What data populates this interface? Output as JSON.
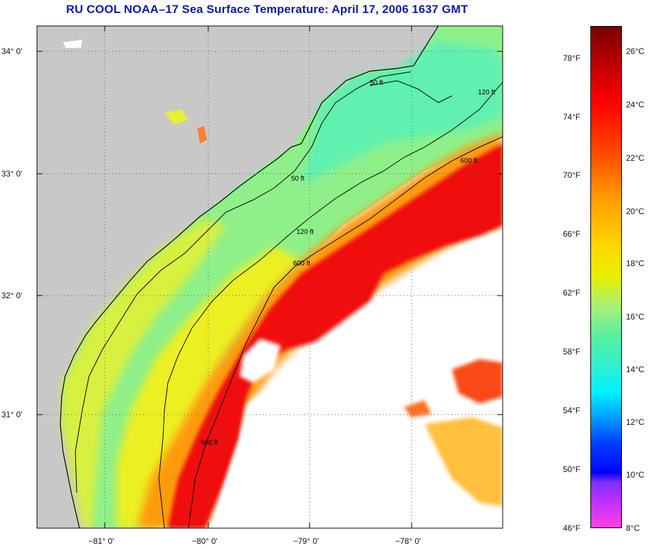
{
  "title": "RU COOL  NOAA–17  Sea Surface Temperature:  April 17, 2006 1637 GMT",
  "map": {
    "lat_labels": [
      "34° 0'",
      "33° 0'",
      "32° 0'",
      "31° 0'"
    ],
    "lon_labels": [
      "−81° 0'",
      "−80° 0'",
      "−79° 0'",
      "−78° 0'"
    ],
    "contour_labels": [
      "50 ft",
      "120 ft",
      "600 ft"
    ],
    "colors": {
      "land": "#c8c8c8",
      "no_data": "#ffffff",
      "coastline": "#000000",
      "grid": "#555555"
    }
  },
  "colorbar": {
    "fahrenheit_labels": [
      "78°F",
      "74°F",
      "70°F",
      "66°F",
      "62°F",
      "58°F",
      "54°F",
      "50°F",
      "46°F"
    ],
    "celsius_labels": [
      "26°C",
      "24°C",
      "22°C",
      "20°C",
      "18°C",
      "16°C",
      "14°C",
      "12°C",
      "10°C",
      "8°C"
    ]
  }
}
